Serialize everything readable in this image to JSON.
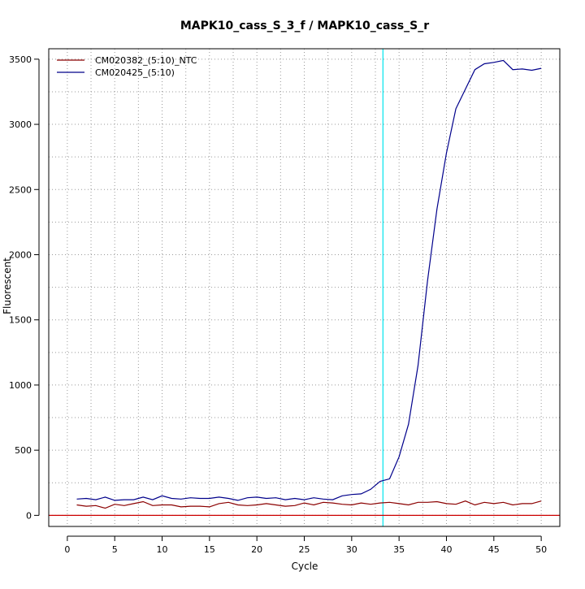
{
  "chart_data": {
    "type": "line",
    "title": "MAPK10_cass_S_3_f / MAPK10_cass_S_r",
    "xlabel": "Cycle",
    "ylabel": "Fluorescent",
    "xlim": [
      -1.96,
      51.96
    ],
    "ylim": [
      -85,
      3580
    ],
    "xticks": [
      0,
      5,
      10,
      15,
      20,
      25,
      30,
      35,
      40,
      45,
      50
    ],
    "yticks": [
      0,
      500,
      1000,
      1500,
      2000,
      2500,
      3000,
      3500
    ],
    "grid": true,
    "legend_position": "top-left",
    "threshold": {
      "cycle": 33.3,
      "color": "#00e5ee"
    },
    "baseline": {
      "value": 0,
      "color": "#cc0000"
    },
    "x": [
      1,
      2,
      3,
      4,
      5,
      6,
      7,
      8,
      9,
      10,
      11,
      12,
      13,
      14,
      15,
      16,
      17,
      18,
      19,
      20,
      21,
      22,
      23,
      24,
      25,
      26,
      27,
      28,
      29,
      30,
      31,
      32,
      33,
      34,
      35,
      36,
      37,
      38,
      39,
      40,
      41,
      42,
      43,
      44,
      45,
      46,
      47,
      48,
      49,
      50
    ],
    "series": [
      {
        "name": "CM020382_(5:10)_NTC",
        "color": "#8b0000",
        "values": [
          80,
          70,
          75,
          55,
          85,
          75,
          90,
          105,
          75,
          80,
          80,
          65,
          70,
          70,
          65,
          90,
          100,
          80,
          75,
          80,
          90,
          80,
          70,
          75,
          95,
          80,
          100,
          95,
          85,
          80,
          95,
          85,
          95,
          100,
          90,
          80,
          100,
          100,
          105,
          90,
          85,
          110,
          80,
          100,
          90,
          100,
          80,
          90,
          90,
          110
        ]
      },
      {
        "name": "CM020425_(5:10)",
        "color": "#00008b",
        "values": [
          125,
          130,
          120,
          140,
          115,
          120,
          120,
          140,
          120,
          150,
          130,
          125,
          135,
          130,
          130,
          140,
          130,
          115,
          135,
          140,
          130,
          135,
          120,
          130,
          120,
          135,
          125,
          120,
          150,
          160,
          165,
          200,
          260,
          280,
          450,
          700,
          1150,
          1800,
          2350,
          2780,
          3120,
          3270,
          3420,
          3465,
          3475,
          3490,
          3420,
          3425,
          3415,
          3430
        ]
      }
    ]
  }
}
